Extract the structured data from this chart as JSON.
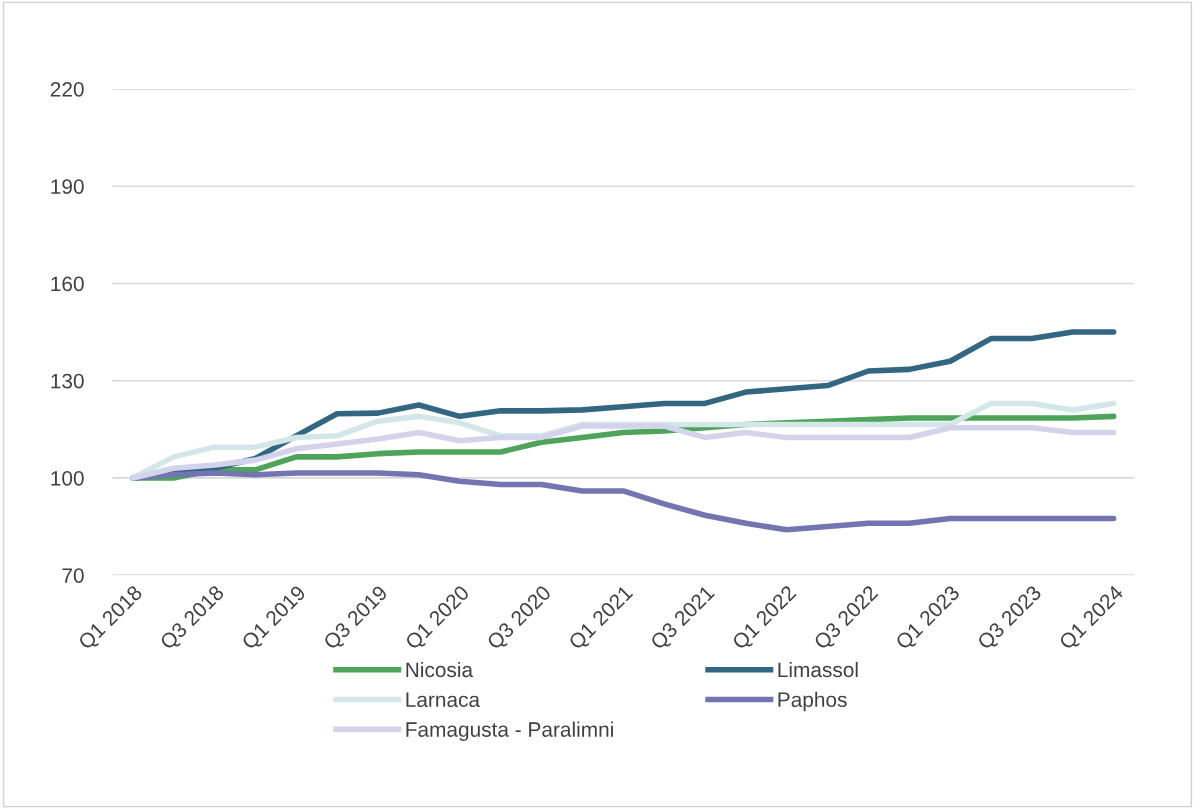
{
  "chart_data": {
    "type": "line",
    "categories": [
      "Q1 2018",
      null,
      "Q3 2018",
      null,
      "Q1 2019",
      null,
      "Q3 2019",
      null,
      "Q1 2020",
      null,
      "Q3 2020",
      null,
      "Q1 2021",
      null,
      "Q3 2021",
      null,
      "Q1 2022",
      null,
      "Q3 2022",
      null,
      "Q1 2023",
      null,
      "Q3 2023",
      null,
      "Q1 2024"
    ],
    "series": [
      {
        "name": "Nicosia",
        "color": "#4ea45a",
        "values": [
          100,
          100,
          102.5,
          102.5,
          106.5,
          106.5,
          107.5,
          108,
          108,
          108,
          111,
          112.5,
          114,
          114.5,
          115.5,
          116.5,
          117,
          117.5,
          118,
          118.5,
          118.5,
          118.5,
          118.5,
          118.5,
          119
        ]
      },
      {
        "name": "Limassol",
        "color": "#336680",
        "values": [
          100,
          101.5,
          103,
          106,
          113,
          119.8,
          120,
          122.5,
          119,
          120.7,
          120.7,
          121,
          122,
          123,
          123,
          126.5,
          127.5,
          128.5,
          133,
          133.5,
          136,
          143,
          143,
          145,
          145
        ]
      },
      {
        "name": "Larnaca",
        "color": "#d3e7e9",
        "values": [
          100,
          106.5,
          109.5,
          109.5,
          112.5,
          113,
          117.5,
          119,
          117,
          113,
          113,
          116.5,
          116.5,
          116.5,
          116.5,
          116.5,
          116.5,
          116.5,
          116.5,
          116.5,
          116.5,
          123,
          123,
          121,
          123
        ]
      },
      {
        "name": "Paphos",
        "color": "#7375b0",
        "values": [
          100,
          101,
          101.5,
          101,
          101.5,
          101.5,
          101.5,
          101,
          99,
          98,
          98,
          96,
          96,
          92,
          88.5,
          86,
          84,
          85,
          86,
          86,
          87.5,
          87.5,
          87.5,
          87.5,
          87.5
        ]
      },
      {
        "name": "Famagusta - Paralimni",
        "color": "#d4d3ec",
        "values": [
          100,
          103,
          104,
          105.5,
          109,
          110.5,
          112,
          114,
          111.5,
          112.5,
          112.5,
          116,
          116,
          116,
          112.5,
          114,
          112.5,
          112.5,
          112.5,
          112.5,
          115.5,
          115.5,
          115.5,
          114,
          114
        ]
      }
    ],
    "ylim": [
      70,
      220
    ],
    "yticks": [
      70,
      100,
      130,
      160,
      190,
      220
    ],
    "grid": "y",
    "legend": "bottom",
    "marker": "none",
    "line_style": "solid"
  }
}
